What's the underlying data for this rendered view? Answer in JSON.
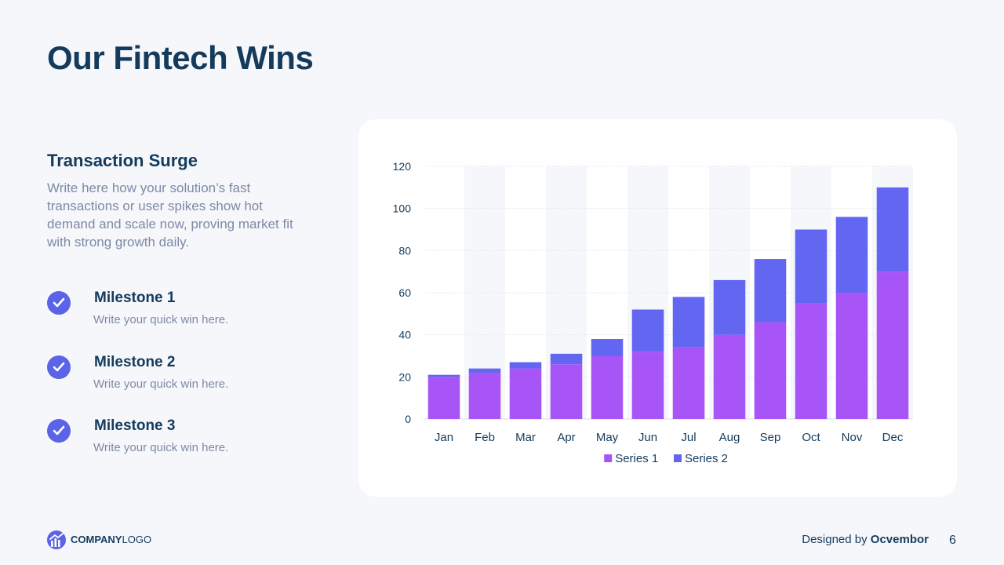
{
  "page": {
    "title": "Our Fintech Wins",
    "page_number": "6"
  },
  "section": {
    "title": "Transaction Surge",
    "description": "Write here how your solution’s fast transactions or user spikes show hot demand and scale now, proving market fit with strong growth daily."
  },
  "milestones": [
    {
      "title": "Milestone 1",
      "desc": "Write your quick win here.",
      "icon": "check-icon"
    },
    {
      "title": "Milestone 2",
      "desc": "Write your quick win here.",
      "icon": "check-icon"
    },
    {
      "title": "Milestone 3",
      "desc": "Write your quick win here.",
      "icon": "check-icon"
    }
  ],
  "footer": {
    "logo_bold": "COMPANY",
    "logo_light": "LOGO",
    "designed_prefix": "Designed by",
    "designed_brand": "Ocvembor",
    "logo_icon": "chart-logo-icon"
  },
  "colors": {
    "series1": "#a855f7",
    "series2": "#6366f1",
    "accent": "#5b63e6",
    "heading": "#143b5c",
    "muted": "#7c8aa5"
  },
  "chart_data": {
    "type": "bar",
    "stacked": true,
    "categories": [
      "Jan",
      "Feb",
      "Mar",
      "Apr",
      "May",
      "Jun",
      "Jul",
      "Aug",
      "Sep",
      "Oct",
      "Nov",
      "Dec"
    ],
    "series": [
      {
        "name": "Series 1",
        "values": [
          20,
          22,
          24,
          26,
          30,
          32,
          34,
          40,
          46,
          55,
          60,
          70
        ]
      },
      {
        "name": "Series 2",
        "values": [
          1,
          2,
          3,
          5,
          8,
          20,
          24,
          26,
          30,
          35,
          36,
          40
        ]
      }
    ],
    "ylim": [
      0,
      120
    ],
    "yticks": [
      0,
      20,
      40,
      60,
      80,
      100,
      120
    ],
    "legend_position": "bottom",
    "alternating_band_columns": true,
    "grid": true
  }
}
